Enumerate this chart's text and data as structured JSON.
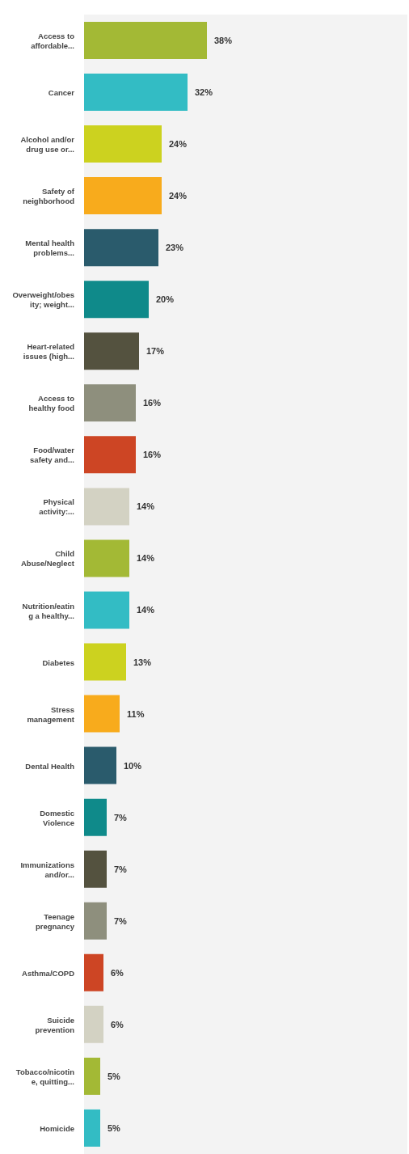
{
  "chart_data": {
    "type": "bar",
    "orientation": "horizontal",
    "categories": [
      "Access to affordable...",
      "Cancer",
      "Alcohol and/or drug use or...",
      "Safety of neighborhood",
      "Mental health problems...",
      "Overweight/obesity; weight...",
      "Heart-related issues (high...",
      "Access to healthy food",
      "Food/water safety and...",
      "Physical activity:...",
      "Child Abuse/Neglect",
      "Nutrition/eating a healthy...",
      "Diabetes",
      "Stress management",
      "Dental Health",
      "Domestic Violence",
      "Immunizations and/or...",
      "Teenage pregnancy",
      "Asthma/COPD",
      "Suicide prevention",
      "Tobacco/nicotine, quitting...",
      "Homicide"
    ],
    "values": [
      38,
      32,
      24,
      24,
      23,
      20,
      17,
      16,
      16,
      14,
      14,
      14,
      13,
      11,
      10,
      7,
      7,
      7,
      6,
      6,
      5,
      5
    ],
    "value_labels": [
      "38%",
      "32%",
      "24%",
      "24%",
      "23%",
      "20%",
      "17%",
      "16%",
      "16%",
      "14%",
      "14%",
      "14%",
      "13%",
      "11%",
      "10%",
      "7%",
      "7%",
      "7%",
      "6%",
      "6%",
      "5%",
      "5%"
    ],
    "colors": [
      "#a3b935",
      "#33bcc4",
      "#ccd21f",
      "#f8ab1c",
      "#2a5b6c",
      "#0f8a8a",
      "#54523f",
      "#8e8f7d",
      "#cd4524",
      "#d3d2c3",
      "#a3b935",
      "#33bcc4",
      "#ccd21f",
      "#f8ab1c",
      "#2a5b6c",
      "#0f8a8a",
      "#54523f",
      "#8e8f7d",
      "#cd4524",
      "#d3d2c3",
      "#a3b935",
      "#33bcc4"
    ],
    "xlim": [
      0,
      100
    ],
    "tick_labels": "y"
  }
}
